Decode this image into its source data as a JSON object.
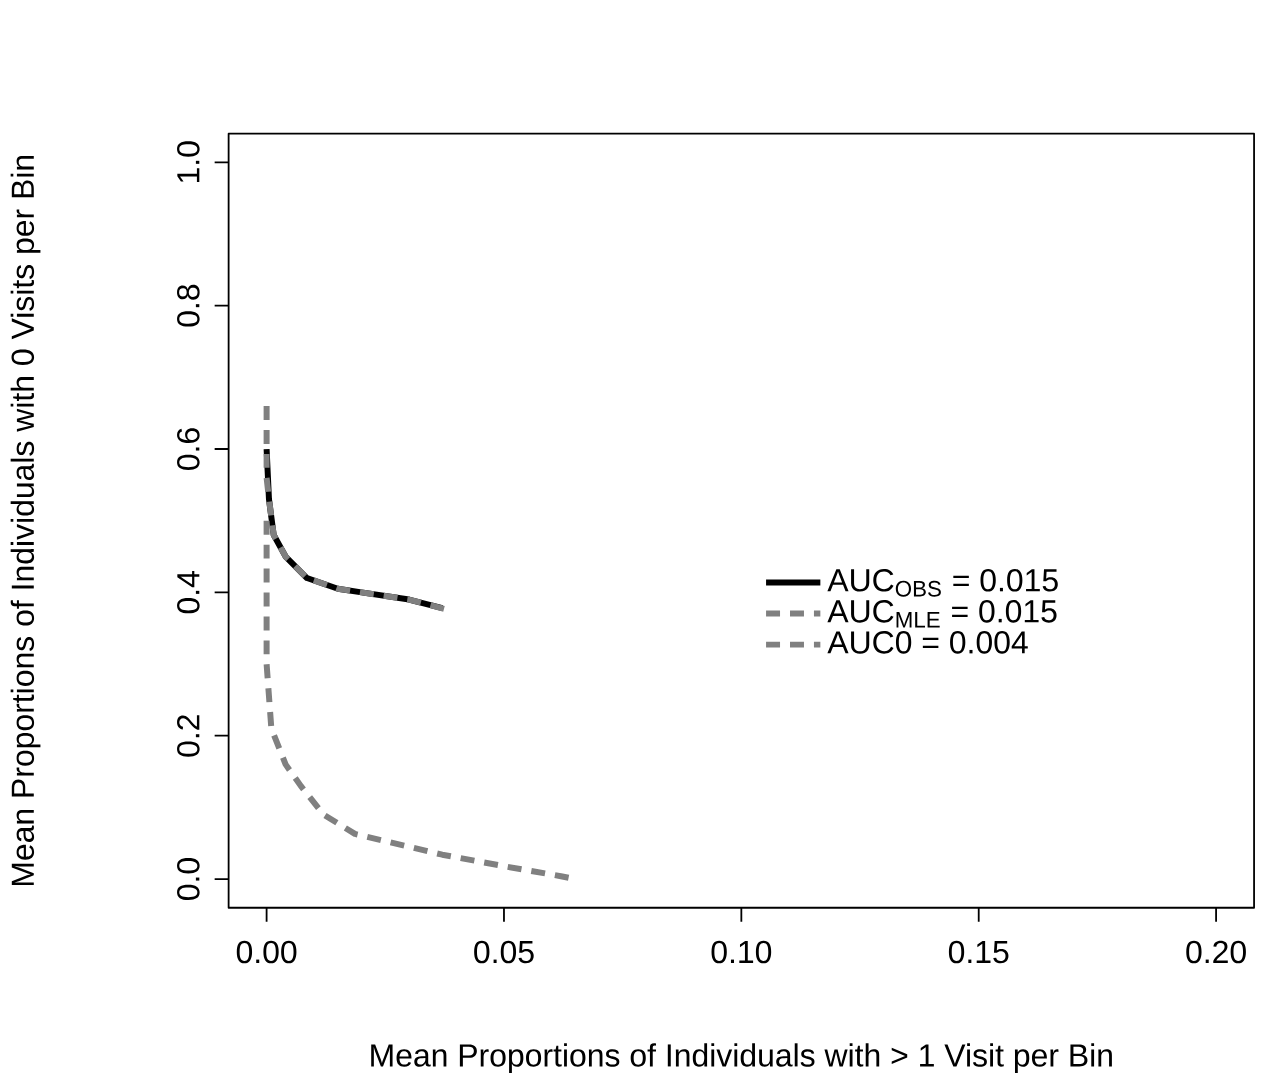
{
  "chart_data": {
    "type": "line",
    "xlabel": "Mean Proportions of Individuals with > 1 Visit per Bin",
    "ylabel": "Mean Proportions of Individuals with 0 Visits per Bin",
    "xlim": [
      -0.008,
      0.208
    ],
    "ylim": [
      -0.04,
      1.04
    ],
    "xticks": [
      {
        "value": 0,
        "label": "0.00"
      },
      {
        "value": 0.05,
        "label": "0.05"
      },
      {
        "value": 0.1,
        "label": "0.10"
      },
      {
        "value": 0.15,
        "label": "0.15"
      },
      {
        "value": 0.2,
        "label": "0.20"
      }
    ],
    "yticks": [
      {
        "value": 0,
        "label": "0.0"
      },
      {
        "value": 0.2,
        "label": "0.2"
      },
      {
        "value": 0.4,
        "label": "0.4"
      },
      {
        "value": 0.6,
        "label": "0.6"
      },
      {
        "value": 0.8,
        "label": "0.8"
      },
      {
        "value": 1,
        "label": "1.0"
      }
    ],
    "grid": false,
    "legend": "right",
    "marker": "none",
    "series": [
      {
        "name": "AUC$_{OBS}$ = 0.015",
        "color": "#000000",
        "line_style": "solid",
        "x": [
          0,
          0.0005,
          0.0015,
          0.004,
          0.0085,
          0.015,
          0.02,
          0.03,
          0.037
        ],
        "values": [
          0.6,
          0.53,
          0.48,
          0.45,
          0.42,
          0.405,
          0.4,
          0.39,
          0.378
        ]
      },
      {
        "name": "AUC$_{MLE}$ = 0.015",
        "color": "#808080",
        "line_style": "dashed",
        "x": [
          0,
          0,
          0.0005,
          0.0015,
          0.004,
          0.0085,
          0.015,
          0.02,
          0.03,
          0.038
        ],
        "values": [
          0.66,
          0.56,
          0.53,
          0.48,
          0.45,
          0.42,
          0.405,
          0.4,
          0.39,
          0.376
        ]
      },
      {
        "name": "AUC0 = 0.004",
        "color": "#808080",
        "line_style": "dashed",
        "x": [
          0,
          0,
          0.001,
          0.004,
          0.0072,
          0.012,
          0.0186,
          0.03,
          0.037,
          0.05,
          0.062,
          0.065
        ],
        "values": [
          0.5,
          0.3,
          0.21,
          0.16,
          0.13,
          0.09,
          0.063,
          0.045,
          0.034,
          0.018,
          0.004,
          0.0
        ]
      }
    ]
  }
}
